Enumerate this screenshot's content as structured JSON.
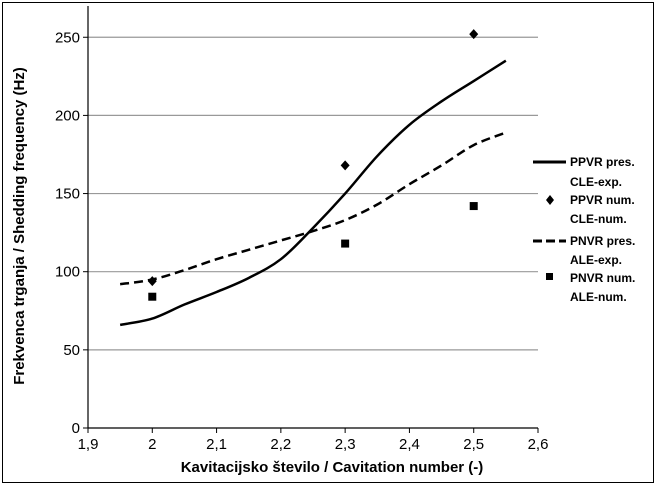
{
  "chart_data": {
    "type": "line",
    "xlabel": "Kavitacijsko število / Cavitation number (-)",
    "ylabel": "Frekvenca trganja / Shedding frequency (Hz)",
    "xlim": [
      1.9,
      2.6
    ],
    "ylim": [
      0,
      270
    ],
    "x_ticks": [
      "1,9",
      "2",
      "2,1",
      "2,2",
      "2,3",
      "2,4",
      "2,5",
      "2,6"
    ],
    "y_ticks": [
      "0",
      "50",
      "100",
      "150",
      "200",
      "250"
    ],
    "grid": "horizontal",
    "legend_position": "right",
    "series": [
      {
        "name": "PPVR pres. CLE-exp.",
        "style": "solid-line",
        "x": [
          1.95,
          2.0,
          2.05,
          2.1,
          2.15,
          2.2,
          2.25,
          2.3,
          2.35,
          2.4,
          2.45,
          2.5,
          2.55
        ],
        "y": [
          66,
          70,
          79,
          87,
          96,
          108,
          128,
          150,
          174,
          194,
          209,
          222,
          235
        ]
      },
      {
        "name": "PPVR num. CLE-num.",
        "style": "diamond-marker",
        "x": [
          2.0,
          2.3,
          2.5
        ],
        "y": [
          94,
          168,
          252
        ]
      },
      {
        "name": "PNVR pres. ALE-exp.",
        "style": "dashed-line",
        "x": [
          1.95,
          2.0,
          2.05,
          2.1,
          2.15,
          2.2,
          2.25,
          2.3,
          2.35,
          2.4,
          2.45,
          2.5,
          2.55
        ],
        "y": [
          92,
          95,
          101,
          108,
          114,
          120,
          126,
          133,
          143,
          156,
          168,
          181,
          189
        ]
      },
      {
        "name": "PNVR num. ALE-num.",
        "style": "square-marker",
        "x": [
          2.0,
          2.3,
          2.5
        ],
        "y": [
          84,
          118,
          142
        ]
      }
    ]
  },
  "legend": [
    {
      "line1": "PPVR pres.",
      "line2": "CLE-exp."
    },
    {
      "line1": "PPVR num.",
      "line2": "CLE-num."
    },
    {
      "line1": "PNVR pres.",
      "line2": "ALE-exp."
    },
    {
      "line1": "PNVR num.",
      "line2": "ALE-num."
    }
  ]
}
